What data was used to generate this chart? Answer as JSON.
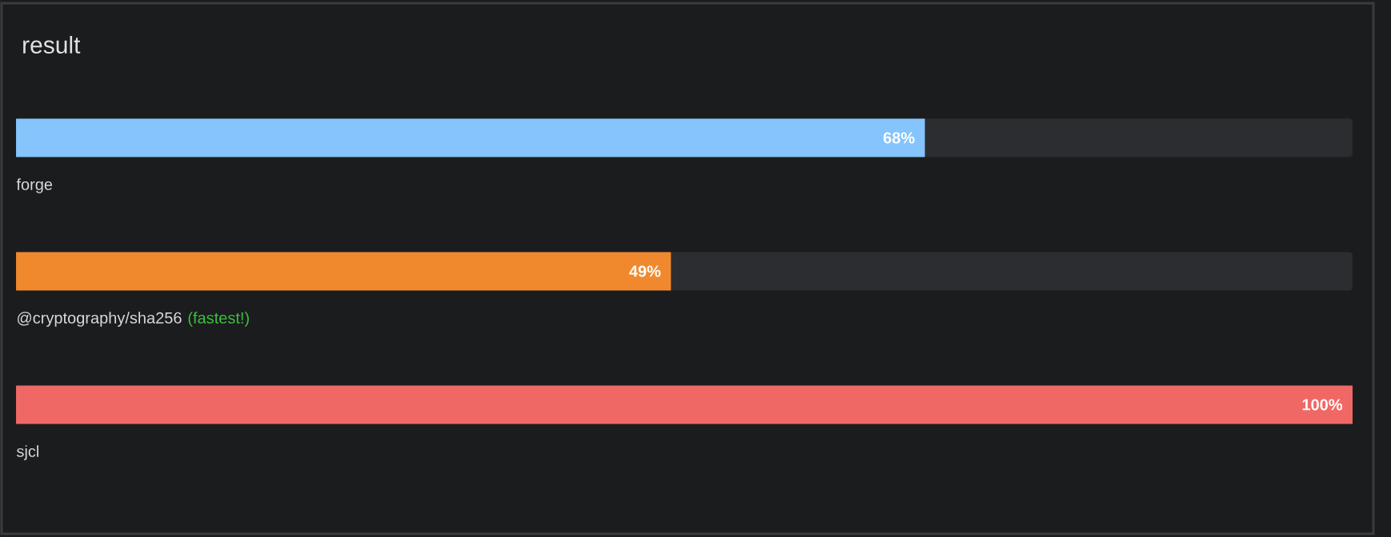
{
  "chart_data": {
    "type": "bar",
    "orientation": "horizontal",
    "title": "result",
    "categories": [
      "forge",
      "@cryptography/sha256",
      "sjcl"
    ],
    "values": [
      68,
      49,
      100
    ],
    "colors": [
      "#85c4fc",
      "#f0892e",
      "#f06865"
    ],
    "value_labels": [
      "68%",
      "49%",
      "100%"
    ],
    "annotations": [
      "(fastest!)"
    ]
  }
}
